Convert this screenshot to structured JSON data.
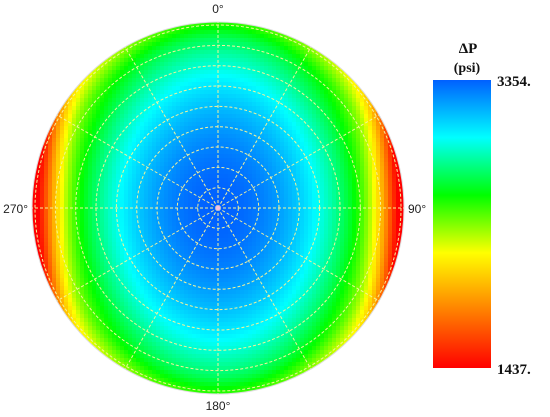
{
  "chart_data": {
    "type": "heatmap",
    "projection": "polar",
    "angle_ticks": [
      {
        "angle": 0,
        "label": "0°"
      },
      {
        "angle": 90,
        "label": "90°"
      },
      {
        "angle": 180,
        "label": "180°"
      },
      {
        "angle": 270,
        "label": "270°"
      }
    ],
    "grid": true,
    "colorbar": {
      "title": "ΔP",
      "unit": "(psi)",
      "max_label": "3354.",
      "min_label": "1437.",
      "range": [
        1437,
        3354
      ],
      "colors": [
        "#ff0000",
        "#ff8000",
        "#ffff00",
        "#00ff00",
        "#00ffff",
        "#0060ff"
      ],
      "placement": "right"
    },
    "field_shape": "maximum at center, decreasing toward the 90° and 270° edges, moderately elevated near 0° and 180°"
  }
}
